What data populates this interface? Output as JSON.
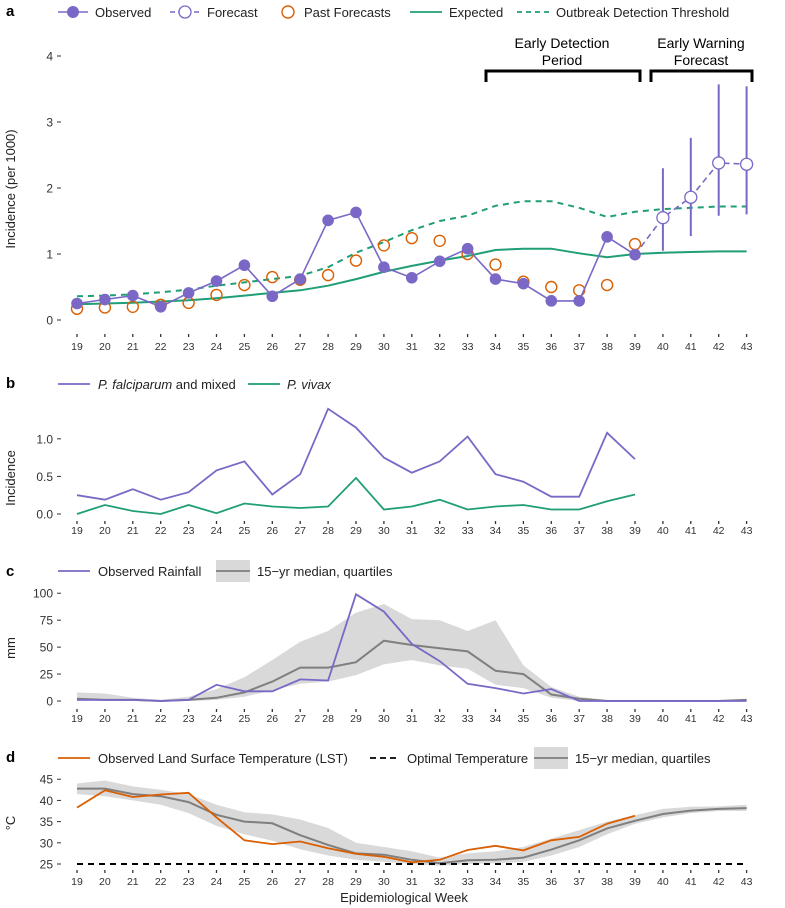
{
  "weeks": [
    19,
    20,
    21,
    22,
    23,
    24,
    25,
    26,
    27,
    28,
    29,
    30,
    31,
    32,
    33,
    34,
    35,
    36,
    37,
    38,
    39,
    40,
    41,
    42,
    43
  ],
  "colors": {
    "purple": "#7b68c6",
    "green": "#1f9e77",
    "orange": "#d95f02",
    "gray": "#7f7f7f",
    "band": "#d9d9d9",
    "black": "#000000",
    "tick": "#333333"
  },
  "xlabel": "Epidemiological Week",
  "chart_data": [
    {
      "panel": "a",
      "type": "line",
      "ylabel": "Incidence (per 1000)",
      "ylim": [
        0,
        4
      ],
      "yticks": [
        0,
        1,
        2,
        3,
        4
      ],
      "legend": [
        "Observed",
        "Forecast",
        "Past Forecasts",
        "Expected",
        "Outbreak Detection Threshold"
      ],
      "annotations": [
        {
          "label_lines": [
            "Early Detection",
            "Period"
          ],
          "from_week": 34,
          "to_week": 39
        },
        {
          "label_lines": [
            "Early Warning",
            "Forecast"
          ],
          "from_week": 40,
          "to_week": 43
        }
      ],
      "series": [
        {
          "name": "Observed",
          "x": [
            19,
            20,
            21,
            22,
            23,
            24,
            25,
            26,
            27,
            28,
            29,
            30,
            31,
            32,
            33,
            34,
            35,
            36,
            37,
            38,
            39
          ],
          "values": [
            0.25,
            0.31,
            0.37,
            0.2,
            0.41,
            0.59,
            0.83,
            0.36,
            0.62,
            1.51,
            1.63,
            0.8,
            0.64,
            0.89,
            1.08,
            0.62,
            0.55,
            0.29,
            0.29,
            1.26,
            0.99
          ]
        },
        {
          "name": "Forecast",
          "x": [
            39,
            40,
            41,
            42,
            43
          ],
          "values": [
            0.99,
            1.55,
            1.86,
            2.38,
            2.36
          ],
          "lower": [
            null,
            1.05,
            1.27,
            1.58,
            1.6
          ],
          "upper": [
            null,
            2.3,
            2.76,
            3.57,
            3.54
          ]
        },
        {
          "name": "Past Forecasts",
          "x": [
            19,
            20,
            21,
            22,
            23,
            24,
            25,
            26,
            27,
            28,
            29,
            30,
            31,
            32,
            33,
            34,
            35,
            36,
            37,
            38,
            39
          ],
          "values": [
            0.17,
            0.19,
            0.2,
            0.23,
            0.26,
            0.38,
            0.53,
            0.65,
            0.61,
            0.68,
            0.9,
            1.13,
            1.24,
            1.2,
            1.0,
            0.84,
            0.58,
            0.5,
            0.45,
            0.53,
            1.15
          ]
        },
        {
          "name": "Expected",
          "x": [
            19,
            20,
            21,
            22,
            23,
            24,
            25,
            26,
            27,
            28,
            29,
            30,
            31,
            32,
            33,
            34,
            35,
            36,
            37,
            38,
            39,
            40,
            41,
            42,
            43
          ],
          "values": [
            0.24,
            0.25,
            0.26,
            0.28,
            0.3,
            0.33,
            0.37,
            0.41,
            0.45,
            0.52,
            0.62,
            0.73,
            0.82,
            0.9,
            0.97,
            1.06,
            1.08,
            1.08,
            1.01,
            0.95,
            1.0,
            1.02,
            1.03,
            1.04,
            1.04
          ]
        },
        {
          "name": "Outbreak Detection Threshold",
          "x": [
            19,
            20,
            21,
            22,
            23,
            24,
            25,
            26,
            27,
            28,
            29,
            30,
            31,
            32,
            33,
            34,
            35,
            36,
            37,
            38,
            39,
            40,
            41,
            42,
            43
          ],
          "values": [
            0.36,
            0.37,
            0.39,
            0.42,
            0.46,
            0.52,
            0.57,
            0.62,
            0.67,
            0.8,
            1.02,
            1.18,
            1.36,
            1.5,
            1.58,
            1.73,
            1.8,
            1.8,
            1.7,
            1.56,
            1.64,
            1.68,
            1.7,
            1.72,
            1.72
          ]
        }
      ]
    },
    {
      "panel": "b",
      "type": "line",
      "ylabel": "Incidence",
      "ylim": [
        0,
        1.45
      ],
      "yticks": [
        0.0,
        0.5,
        1.0
      ],
      "ytick_labels": [
        "0.0",
        "0.5",
        "1.0"
      ],
      "legend_parts": [
        [
          "P. falciparum",
          " and mixed"
        ],
        [
          "P. vivax",
          ""
        ]
      ],
      "series": [
        {
          "name": "P. falciparum and mixed",
          "x": [
            19,
            20,
            21,
            22,
            23,
            24,
            25,
            26,
            27,
            28,
            29,
            30,
            31,
            32,
            33,
            34,
            35,
            36,
            37,
            38,
            39
          ],
          "values": [
            0.25,
            0.19,
            0.33,
            0.19,
            0.29,
            0.58,
            0.7,
            0.26,
            0.53,
            1.4,
            1.15,
            0.75,
            0.55,
            0.7,
            1.03,
            0.53,
            0.43,
            0.23,
            0.23,
            1.08,
            0.73
          ]
        },
        {
          "name": "P. vivax",
          "x": [
            19,
            20,
            21,
            22,
            23,
            24,
            25,
            26,
            27,
            28,
            29,
            30,
            31,
            32,
            33,
            34,
            35,
            36,
            37,
            38,
            39
          ],
          "values": [
            0.0,
            0.12,
            0.04,
            0.0,
            0.12,
            0.01,
            0.14,
            0.1,
            0.08,
            0.1,
            0.48,
            0.06,
            0.1,
            0.19,
            0.06,
            0.1,
            0.12,
            0.06,
            0.06,
            0.17,
            0.26
          ]
        }
      ]
    },
    {
      "panel": "c",
      "type": "line",
      "ylabel": "mm",
      "ylim": [
        0,
        103
      ],
      "yticks": [
        0,
        25,
        50,
        75,
        100
      ],
      "legend": [
        "Observed Rainfall",
        "15−yr median, quartiles"
      ],
      "series": [
        {
          "name": "Observed Rainfall",
          "x": [
            19,
            20,
            21,
            22,
            23,
            24,
            25,
            26,
            27,
            28,
            29,
            30,
            31,
            32,
            33,
            34,
            35,
            36,
            37,
            38,
            39,
            40,
            41,
            42,
            43
          ],
          "values": [
            1,
            1,
            1,
            0,
            1,
            15,
            9,
            9,
            20,
            19,
            99,
            83,
            53,
            37,
            16,
            12,
            7,
            11,
            0,
            0,
            0,
            0,
            0,
            0,
            0
          ]
        },
        {
          "name": "15−yr median",
          "x": [
            19,
            20,
            21,
            22,
            23,
            24,
            25,
            26,
            27,
            28,
            29,
            30,
            31,
            32,
            33,
            34,
            35,
            36,
            37,
            38,
            39,
            40,
            41,
            42,
            43
          ],
          "values": [
            2,
            1,
            1,
            0,
            1,
            3,
            8,
            18,
            31,
            31,
            36,
            56,
            52,
            49,
            46,
            28,
            25,
            6,
            2,
            0,
            0,
            0,
            0,
            0,
            1
          ],
          "q1": [
            0,
            0,
            0,
            0,
            0,
            1,
            4,
            10,
            16,
            18,
            24,
            34,
            38,
            33,
            30,
            15,
            12,
            3,
            0,
            0,
            0,
            0,
            0,
            0,
            0
          ],
          "q3": [
            8,
            7,
            3,
            1,
            4,
            11,
            22,
            38,
            55,
            65,
            82,
            90,
            76,
            75,
            65,
            75,
            33,
            13,
            4,
            1,
            1,
            1,
            1,
            1,
            2
          ]
        }
      ]
    },
    {
      "panel": "d",
      "type": "line",
      "ylabel": "°C",
      "ylim": [
        25,
        46
      ],
      "yticks": [
        25,
        30,
        35,
        40,
        45
      ],
      "legend": [
        "Observed Land Surface Temperature (LST)",
        "Optimal Temperature",
        "15−yr median, quartiles"
      ],
      "series": [
        {
          "name": "Observed Land Surface Temperature (LST)",
          "x": [
            19,
            20,
            21,
            22,
            23,
            24,
            25,
            26,
            27,
            28,
            29,
            30,
            31,
            32,
            33,
            34,
            35,
            36,
            37,
            38,
            39
          ],
          "values": [
            38.3,
            42.4,
            40.8,
            41.4,
            41.8,
            36.0,
            30.6,
            29.7,
            30.3,
            28.7,
            27.4,
            26.7,
            25.4,
            26.0,
            28.3,
            29.3,
            28.2,
            30.6,
            31.4,
            34.5,
            36.4
          ]
        },
        {
          "name": "Optimal Temperature",
          "x": [
            19,
            43
          ],
          "values": [
            25,
            25
          ]
        },
        {
          "name": "15−yr median",
          "x": [
            19,
            20,
            21,
            22,
            23,
            24,
            25,
            26,
            27,
            28,
            29,
            30,
            31,
            32,
            33,
            34,
            35,
            36,
            37,
            38,
            39,
            40,
            41,
            42,
            43
          ],
          "values": [
            42.8,
            42.8,
            41.5,
            41.0,
            39.6,
            36.6,
            35.0,
            34.6,
            31.8,
            29.5,
            27.5,
            27.2,
            26.0,
            25.2,
            25.9,
            26.0,
            26.5,
            28.4,
            30.6,
            33.4,
            35.2,
            36.8,
            37.6,
            38.0,
            38.2
          ],
          "q1": [
            41.5,
            41.0,
            40.0,
            39.0,
            37.0,
            34.0,
            32.0,
            30.5,
            28.5,
            27.0,
            26.0,
            25.5,
            25.0,
            24.6,
            25.0,
            25.2,
            25.5,
            27.0,
            29.0,
            32.0,
            34.5,
            36.0,
            37.0,
            37.5,
            37.5
          ],
          "q3": [
            44.0,
            44.7,
            43.3,
            42.5,
            41.5,
            39.0,
            37.2,
            36.7,
            35.5,
            33.5,
            30.0,
            29.0,
            28.0,
            26.5,
            27.5,
            28.0,
            29.0,
            31.0,
            33.0,
            35.0,
            36.5,
            38.0,
            38.5,
            38.6,
            39.0
          ]
        }
      ]
    }
  ]
}
